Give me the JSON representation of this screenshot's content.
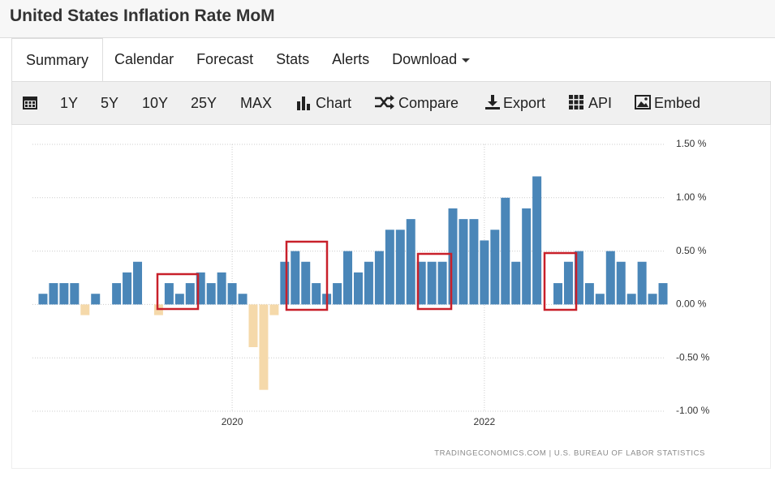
{
  "header": {
    "title": "United States Inflation Rate MoM"
  },
  "tabs": [
    "Summary",
    "Calendar",
    "Forecast",
    "Stats",
    "Alerts",
    "Download"
  ],
  "toolbar": [
    "1Y",
    "5Y",
    "10Y",
    "25Y",
    "MAX",
    "Chart",
    "Compare",
    "Export",
    "API",
    "Embed"
  ],
  "chart_data": {
    "type": "bar",
    "categories": [
      null,
      null,
      null,
      null,
      null,
      null,
      null,
      null,
      null,
      null,
      null,
      null,
      null,
      null,
      null,
      null,
      null,
      null,
      "2020",
      null,
      null,
      null,
      null,
      null,
      null,
      null,
      null,
      null,
      null,
      null,
      null,
      null,
      null,
      null,
      null,
      null,
      null,
      null,
      null,
      null,
      null,
      null,
      "2022",
      null,
      null,
      null,
      null,
      null,
      null,
      null,
      null,
      null,
      null,
      null,
      null,
      null,
      null,
      null,
      null,
      null
    ],
    "values": [
      0.1,
      0.2,
      0.2,
      0.2,
      -0.1,
      0.1,
      0,
      0.2,
      0.3,
      0.4,
      0,
      -0.1,
      0.2,
      0.1,
      0.2,
      0.3,
      0.2,
      0.3,
      0.2,
      0.1,
      -0.4,
      -0.8,
      -0.1,
      0.4,
      0.5,
      0.4,
      0.2,
      0.1,
      0.2,
      0.5,
      0.3,
      0.4,
      0.5,
      0.7,
      0.7,
      0.8,
      0.4,
      0.4,
      0.4,
      0.9,
      0.8,
      0.8,
      0.6,
      0.7,
      1.0,
      0.4,
      0.9,
      1.2,
      0,
      0.2,
      0.4,
      0.5,
      0.2,
      0.1,
      0.5,
      0.4,
      0.1,
      0.4,
      0.1,
      0.2
    ],
    "color": "#4a86b8",
    "negative_color": "#f5d9aa",
    "ylim": [
      -1.0,
      1.5
    ],
    "yticks": [
      {
        "value": 1.5,
        "label": "1.50 %"
      },
      {
        "value": 1.0,
        "label": "1.00 %"
      },
      {
        "value": 0.5,
        "label": "0.50 %"
      },
      {
        "value": 0,
        "label": "0.00 %"
      },
      {
        "value": -0.5,
        "label": "-0.50 %"
      },
      {
        "value": -1.0,
        "label": "-1.00 %"
      }
    ],
    "grid": true,
    "source": "TRADINGECONOMICS.COM | U.S. BUREAU OF LABOR STATISTICS"
  }
}
